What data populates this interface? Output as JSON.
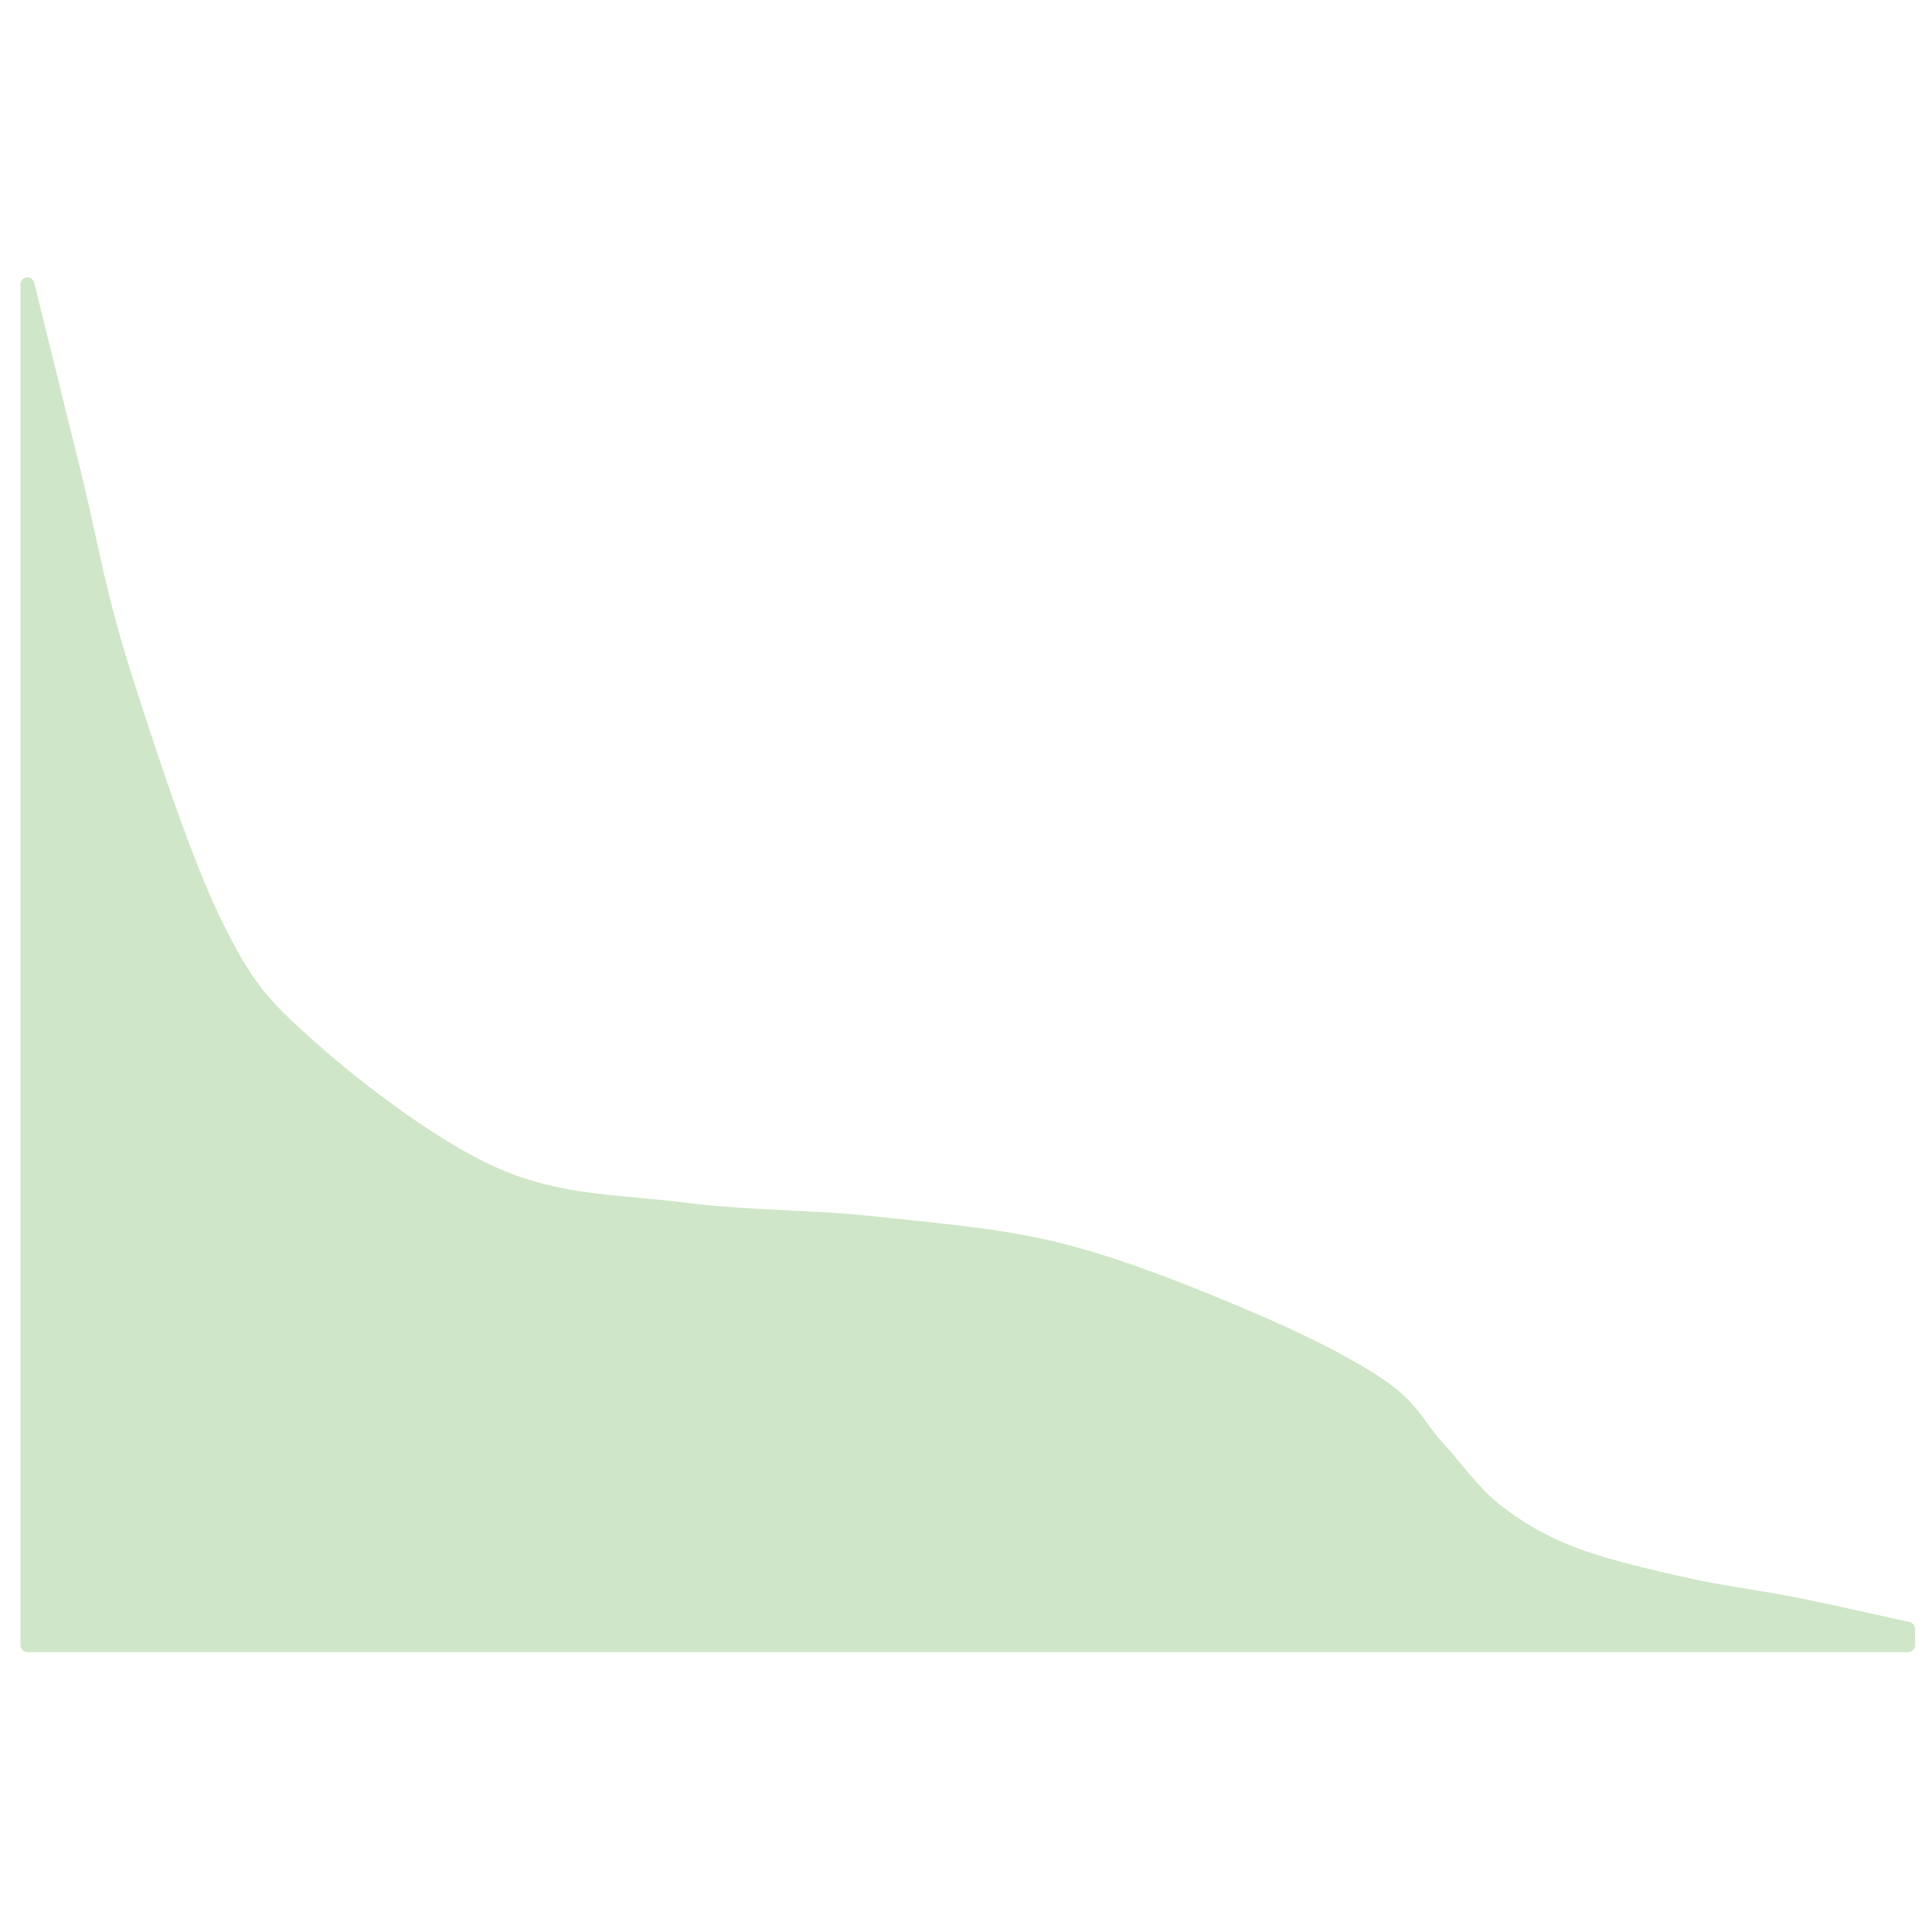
{
  "chart_data": {
    "type": "area",
    "title": "",
    "xlabel": "",
    "ylabel": "",
    "x": [
      0,
      0.025,
      0.05,
      0.1,
      0.15,
      0.25,
      0.35,
      0.45,
      0.55,
      0.65,
      0.72,
      0.75,
      0.78,
      0.82,
      0.88,
      0.94,
      1.0
    ],
    "series": [
      {
        "values": [
          1.0,
          0.86,
          0.72,
          0.53,
          0.44,
          0.345,
          0.32,
          0.31,
          0.29,
          0.24,
          0.19,
          0.145,
          0.1,
          0.068,
          0.045,
          0.03,
          0.012
        ]
      }
    ],
    "xlim": [
      0,
      1
    ],
    "ylim": [
      0,
      1
    ],
    "grid": false,
    "axes_visible": false,
    "fill_color": "#d0e6c8"
  }
}
